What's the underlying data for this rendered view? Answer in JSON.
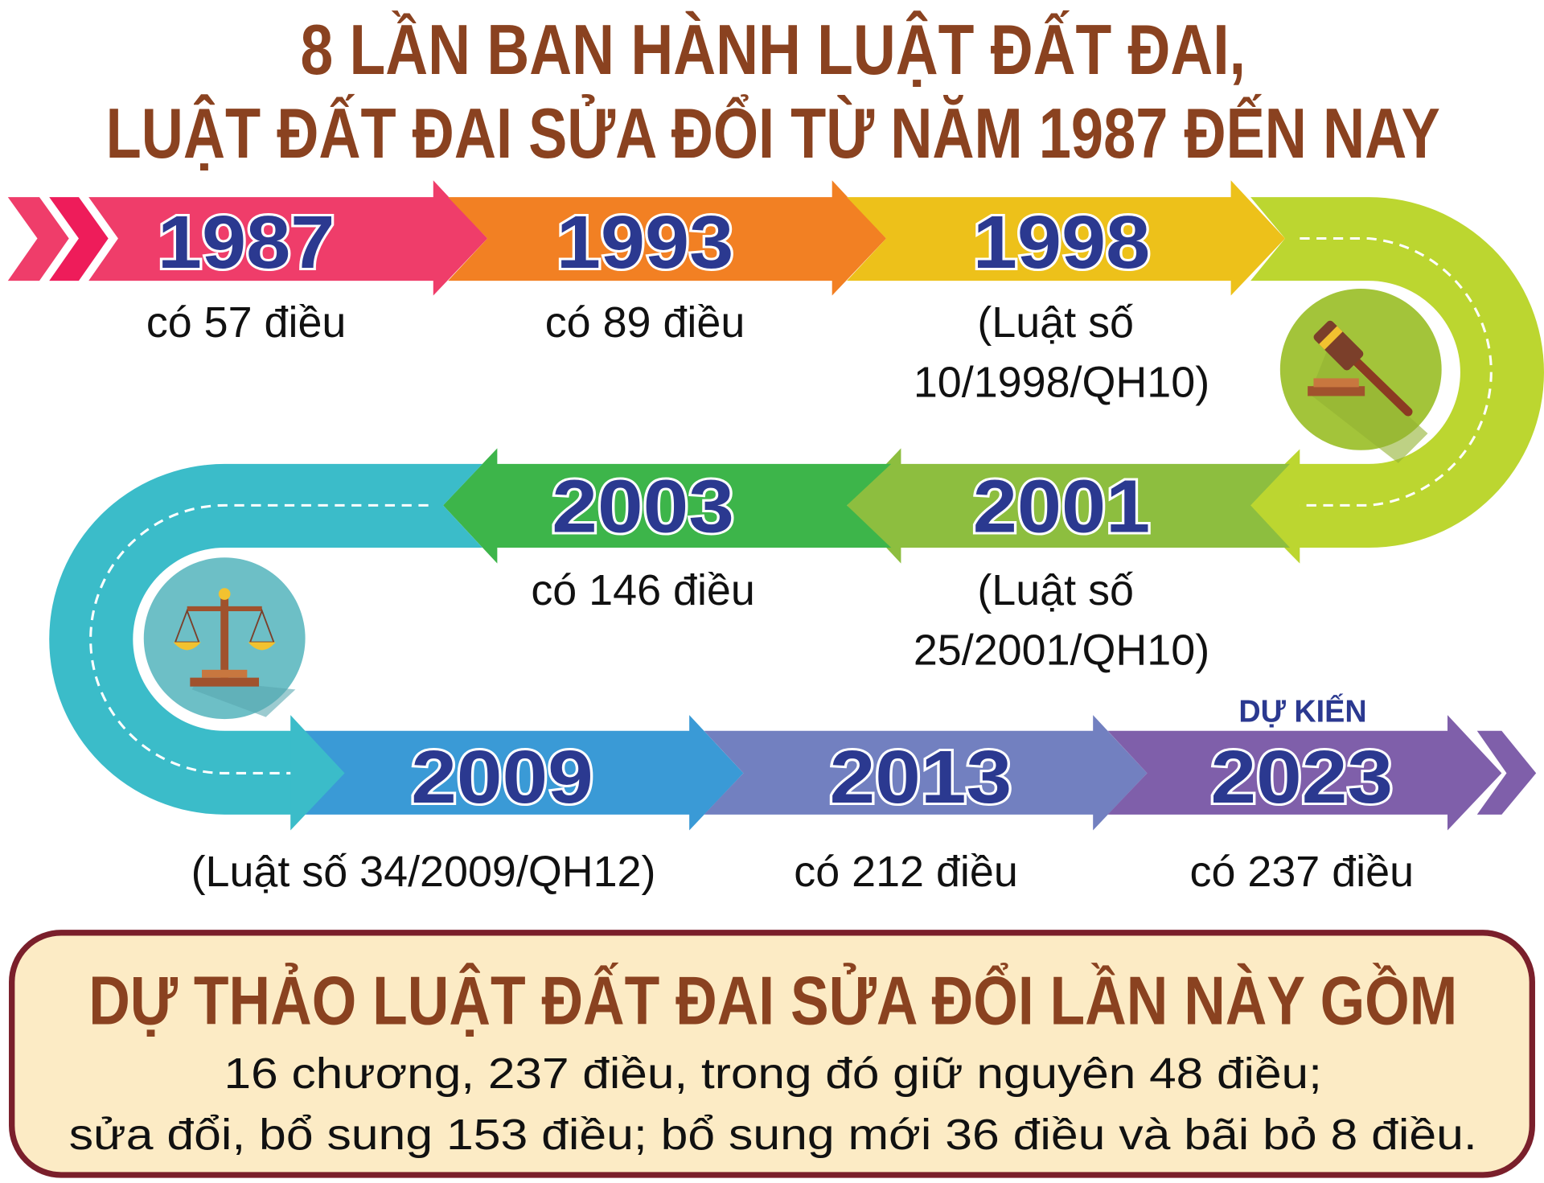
{
  "title": {
    "line1": "8 LẦN BAN HÀNH LUẬT ĐẤT ĐAI,",
    "line2": "LUẬT ĐẤT ĐAI SỬA ĐỔI TỪ NĂM 1987 ĐẾN NAY"
  },
  "timeline": [
    {
      "year": "1987",
      "lines": [
        "có 57 điều"
      ],
      "color": "#ef3d6a"
    },
    {
      "year": "1993",
      "lines": [
        "có 89 điều"
      ],
      "color": "#f28023"
    },
    {
      "year": "1998",
      "lines": [
        "(Luật số",
        "10/1998/QH10)"
      ],
      "color": "#edc11a"
    },
    {
      "year": "2001",
      "lines": [
        "(Luật số",
        "25/2001/QH10)"
      ],
      "color": "#8dbe3f"
    },
    {
      "year": "2003",
      "lines": [
        "có 146 điều"
      ],
      "color": "#3db54a"
    },
    {
      "year": "2009",
      "lines": [
        "(Luật số 34/2009/QH12)"
      ],
      "color": "#3a9ad6"
    },
    {
      "year": "2013",
      "lines": [
        "có 212 điều"
      ],
      "color": "#7280c0"
    },
    {
      "year": "2023",
      "tag": "DỰ KIẾN",
      "lines": [
        "có 237 điều"
      ],
      "color": "#7f5faa"
    }
  ],
  "icons": {
    "top_right": "gavel-icon",
    "bottom_left": "scales-icon"
  },
  "summary": {
    "heading": "DỰ THẢO LUẬT ĐẤT ĐAI SỬA ĐỔI LẦN NÀY GỒM",
    "line1": "16 chương, 237 điều, trong đó giữ nguyên 48 điều;",
    "line2": "sửa đổi, bổ sung 153 điều; bổ sung mới 36 điều và bãi bỏ 8 điều."
  }
}
